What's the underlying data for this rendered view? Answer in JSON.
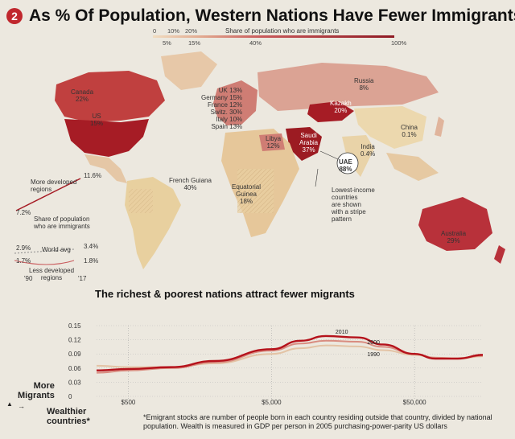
{
  "header": {
    "badge": "2",
    "title": "As % Of Population, Western Nations Have Fewer Immigrants"
  },
  "scale": {
    "label": "Share of population who are immigrants",
    "ticks_top": [
      "0",
      "10%",
      "20%"
    ],
    "ticks_bottom": [
      "5%",
      "15%",
      "40%",
      "100%"
    ]
  },
  "map_labels": {
    "canada": "Canada\n22%",
    "us": "US\n15%",
    "europe": "UK 13%\nGermany 15%\nFrance 12%\nSwitz. 30%\nItaly 10%\nSpain 13%",
    "russia": "Russia\n8%",
    "kazakh": "Kazakh\n20%",
    "china": "China\n0.1%",
    "libya": "Libya\n12%",
    "saudi": "Saudi\nArabia\n37%",
    "uae": "UAE\n88%",
    "india": "India\n0.4%",
    "french_guiana": "French Guiana\n40%",
    "eq_guinea": "Equatorial\nGuinea\n18%",
    "lowest_income": "Lowest-income\ncountries\nare shown\nwith a stripe\npattern",
    "australia": "Australia\n29%"
  },
  "trend_inset": {
    "more_developed": "More developed\nregions",
    "more_dev_start": "7.2%",
    "more_dev_end": "11.6%",
    "share_label": "Share of population\nwho are immigrants",
    "world_start": "2.9%",
    "world_label": "World avg",
    "world_end": "3.4%",
    "less_dev_start": "1.7%",
    "less_dev_end": "1.8%",
    "less_developed": "Less developed\nregions",
    "year_start": "'90",
    "year_end": "'17"
  },
  "chart_data": {
    "type": "line",
    "title": "The richest & poorest nations attract fewer migrants",
    "ylabel": "More\nMigrants",
    "xlabel": "Wealthier\ncountries*",
    "y_ticks": [
      "0.15",
      "0.12",
      "0.09",
      "0.06",
      "0.03",
      "0"
    ],
    "x_ticks": [
      "$500",
      "$5,000",
      "$50,000"
    ],
    "ylim": [
      0,
      0.15
    ],
    "x_scale": "log",
    "x": [
      300,
      500,
      1000,
      2000,
      5000,
      8000,
      12000,
      20000,
      30000,
      50000,
      70000,
      100000,
      150000
    ],
    "series": [
      {
        "name": "2010",
        "color": "#b5121b",
        "values": [
          0.055,
          0.058,
          0.062,
          0.075,
          0.1,
          0.118,
          0.128,
          0.125,
          0.11,
          0.09,
          0.08,
          0.08,
          0.088
        ]
      },
      {
        "name": "2000",
        "color": "#d98c80",
        "values": [
          0.05,
          0.055,
          0.06,
          0.072,
          0.097,
          0.112,
          0.118,
          0.116,
          0.105,
          0.09,
          0.082,
          0.081,
          0.086
        ]
      },
      {
        "name": "1990",
        "color": "#e3c3a5",
        "values": [
          0.065,
          0.062,
          0.062,
          0.07,
          0.09,
          0.102,
          0.108,
          0.106,
          0.098,
          0.088,
          0.082,
          0.08,
          0.085
        ]
      }
    ]
  },
  "footnote": "*Emigrant stocks are number of people born in each country residing outside that country, divided by national population. Wealth is measured in GDP per person in 2005 purchasing-power-parity US dollars"
}
